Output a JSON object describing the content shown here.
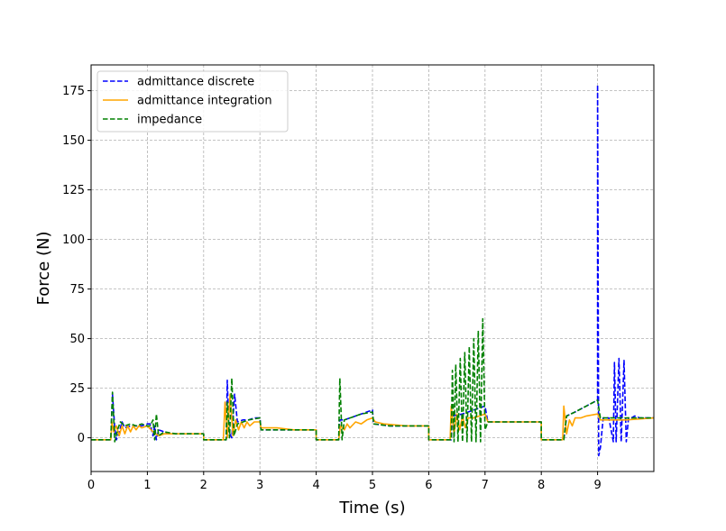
{
  "chart_data": {
    "type": "line",
    "title": "",
    "xlabel": "Time (s)",
    "ylabel": "Force (N)",
    "xlim": [
      0,
      10
    ],
    "ylim": [
      -17,
      188
    ],
    "xticks": [
      0,
      1,
      2,
      3,
      4,
      5,
      6,
      7,
      8,
      9
    ],
    "yticks": [
      0,
      25,
      50,
      75,
      100,
      125,
      150,
      175
    ],
    "grid": true,
    "legend_position": "top-left",
    "series": [
      {
        "name": "admittance discrete",
        "color": "#0000ff",
        "dash": "dashed",
        "points": [
          [
            0,
            -1
          ],
          [
            0.35,
            -1
          ],
          [
            0.38,
            22
          ],
          [
            0.42,
            5
          ],
          [
            0.45,
            -1
          ],
          [
            0.5,
            3
          ],
          [
            0.55,
            8
          ],
          [
            0.6,
            5
          ],
          [
            0.7,
            6
          ],
          [
            0.8,
            6
          ],
          [
            0.9,
            6
          ],
          [
            1.0,
            7
          ],
          [
            1.05,
            7
          ],
          [
            1.1,
            1
          ],
          [
            1.13,
            6
          ],
          [
            1.16,
            -1
          ],
          [
            1.2,
            4
          ],
          [
            1.3,
            3
          ],
          [
            1.4,
            2
          ],
          [
            1.6,
            2
          ],
          [
            2.0,
            2
          ],
          [
            2.0,
            -1
          ],
          [
            2.4,
            -1
          ],
          [
            2.42,
            29
          ],
          [
            2.45,
            3
          ],
          [
            2.5,
            0
          ],
          [
            2.55,
            22
          ],
          [
            2.6,
            8
          ],
          [
            2.7,
            9
          ],
          [
            2.8,
            9
          ],
          [
            2.9,
            10
          ],
          [
            3.0,
            10
          ],
          [
            3.02,
            4
          ],
          [
            3.3,
            4
          ],
          [
            3.6,
            4
          ],
          [
            4.0,
            4
          ],
          [
            4.0,
            -1
          ],
          [
            4.4,
            -1
          ],
          [
            4.42,
            9
          ],
          [
            4.5,
            9
          ],
          [
            4.6,
            10
          ],
          [
            4.8,
            12
          ],
          [
            5.0,
            14
          ],
          [
            5.02,
            7
          ],
          [
            5.3,
            6
          ],
          [
            5.6,
            6
          ],
          [
            6.0,
            6
          ],
          [
            6.0,
            -1
          ],
          [
            6.4,
            -1
          ],
          [
            6.42,
            11
          ],
          [
            6.6,
            12
          ],
          [
            6.8,
            14
          ],
          [
            7.0,
            16
          ],
          [
            7.05,
            8
          ],
          [
            7.3,
            8
          ],
          [
            7.6,
            8
          ],
          [
            8.0,
            8
          ],
          [
            8.0,
            -1
          ],
          [
            8.4,
            -1
          ],
          [
            8.45,
            11
          ],
          [
            8.6,
            13
          ],
          [
            8.8,
            16
          ],
          [
            9.0,
            19
          ],
          [
            9.0,
            178
          ],
          [
            9.02,
            -9
          ],
          [
            9.05,
            -5
          ],
          [
            9.1,
            10
          ],
          [
            9.2,
            10
          ],
          [
            9.28,
            -2
          ],
          [
            9.3,
            38
          ],
          [
            9.33,
            -2
          ],
          [
            9.38,
            40
          ],
          [
            9.42,
            -2
          ],
          [
            9.47,
            39
          ],
          [
            9.51,
            -2
          ],
          [
            9.55,
            10
          ],
          [
            9.6,
            10
          ],
          [
            9.66,
            11
          ],
          [
            9.75,
            10
          ],
          [
            10.0,
            10
          ]
        ]
      },
      {
        "name": "admittance integration",
        "color": "#ffa500",
        "dash": "solid",
        "points": [
          [
            0,
            -1
          ],
          [
            0.35,
            -1
          ],
          [
            0.37,
            8
          ],
          [
            0.4,
            3
          ],
          [
            0.45,
            6
          ],
          [
            0.5,
            1
          ],
          [
            0.55,
            6
          ],
          [
            0.6,
            2
          ],
          [
            0.65,
            6
          ],
          [
            0.7,
            3
          ],
          [
            0.75,
            6
          ],
          [
            0.8,
            4
          ],
          [
            0.85,
            6
          ],
          [
            0.9,
            5
          ],
          [
            1.0,
            6
          ],
          [
            1.1,
            3
          ],
          [
            1.2,
            1
          ],
          [
            1.3,
            2
          ],
          [
            1.5,
            2
          ],
          [
            2.0,
            2
          ],
          [
            2.0,
            -1
          ],
          [
            2.35,
            -1
          ],
          [
            2.38,
            18
          ],
          [
            2.42,
            0
          ],
          [
            2.47,
            22
          ],
          [
            2.52,
            1
          ],
          [
            2.57,
            9
          ],
          [
            2.62,
            4
          ],
          [
            2.67,
            8
          ],
          [
            2.72,
            5
          ],
          [
            2.77,
            8
          ],
          [
            2.82,
            6
          ],
          [
            2.9,
            8
          ],
          [
            3.0,
            8
          ],
          [
            3.02,
            5
          ],
          [
            3.3,
            5
          ],
          [
            3.6,
            4
          ],
          [
            4.0,
            4
          ],
          [
            4.0,
            -1
          ],
          [
            4.4,
            -1
          ],
          [
            4.43,
            6
          ],
          [
            4.5,
            4
          ],
          [
            4.55,
            7
          ],
          [
            4.6,
            5
          ],
          [
            4.7,
            8
          ],
          [
            4.8,
            7
          ],
          [
            4.9,
            9
          ],
          [
            5.0,
            10
          ],
          [
            5.05,
            8
          ],
          [
            5.2,
            7
          ],
          [
            5.6,
            6
          ],
          [
            6.0,
            6
          ],
          [
            6.0,
            -1
          ],
          [
            6.38,
            -1
          ],
          [
            6.4,
            16
          ],
          [
            6.45,
            2
          ],
          [
            6.5,
            12
          ],
          [
            6.55,
            4
          ],
          [
            6.6,
            11
          ],
          [
            6.65,
            5
          ],
          [
            6.7,
            10
          ],
          [
            6.8,
            10
          ],
          [
            6.9,
            11
          ],
          [
            7.0,
            12
          ],
          [
            7.05,
            8
          ],
          [
            7.5,
            8
          ],
          [
            8.0,
            8
          ],
          [
            8.0,
            -1
          ],
          [
            8.38,
            -1
          ],
          [
            8.4,
            16
          ],
          [
            8.45,
            2
          ],
          [
            8.5,
            9
          ],
          [
            8.55,
            6
          ],
          [
            8.6,
            10
          ],
          [
            8.7,
            10
          ],
          [
            8.8,
            11
          ],
          [
            9.0,
            12
          ],
          [
            9.05,
            9
          ],
          [
            9.5,
            9
          ],
          [
            10.0,
            10
          ]
        ]
      },
      {
        "name": "impedance",
        "color": "#008000",
        "dash": "dashed",
        "points": [
          [
            0,
            -1
          ],
          [
            0.35,
            -1
          ],
          [
            0.38,
            23
          ],
          [
            0.42,
            -2
          ],
          [
            0.47,
            4
          ],
          [
            0.52,
            8
          ],
          [
            0.6,
            6
          ],
          [
            0.7,
            7
          ],
          [
            0.8,
            6
          ],
          [
            0.9,
            7
          ],
          [
            1.0,
            6
          ],
          [
            1.05,
            6
          ],
          [
            1.1,
            9
          ],
          [
            1.13,
            -1
          ],
          [
            1.16,
            12
          ],
          [
            1.2,
            1
          ],
          [
            1.3,
            3
          ],
          [
            1.5,
            2
          ],
          [
            2.0,
            2
          ],
          [
            2.0,
            -1
          ],
          [
            2.4,
            -1
          ],
          [
            2.42,
            18
          ],
          [
            2.46,
            0
          ],
          [
            2.5,
            30
          ],
          [
            2.54,
            1
          ],
          [
            2.6,
            7
          ],
          [
            2.7,
            8
          ],
          [
            2.8,
            9
          ],
          [
            3.0,
            10
          ],
          [
            3.02,
            4
          ],
          [
            3.3,
            4
          ],
          [
            3.6,
            4
          ],
          [
            4.0,
            4
          ],
          [
            4.0,
            -1
          ],
          [
            4.4,
            -1
          ],
          [
            4.42,
            30
          ],
          [
            4.46,
            -1
          ],
          [
            4.5,
            9
          ],
          [
            4.6,
            10
          ],
          [
            4.8,
            12
          ],
          [
            5.0,
            13
          ],
          [
            5.02,
            7
          ],
          [
            5.3,
            6
          ],
          [
            5.6,
            6
          ],
          [
            6.0,
            6
          ],
          [
            6.0,
            -1
          ],
          [
            6.4,
            -1
          ],
          [
            6.42,
            34
          ],
          [
            6.45,
            -2
          ],
          [
            6.48,
            37
          ],
          [
            6.52,
            -2
          ],
          [
            6.56,
            40
          ],
          [
            6.6,
            -2
          ],
          [
            6.64,
            43
          ],
          [
            6.68,
            -2
          ],
          [
            6.72,
            46
          ],
          [
            6.76,
            -2
          ],
          [
            6.8,
            50
          ],
          [
            6.84,
            -2
          ],
          [
            6.88,
            54
          ],
          [
            6.92,
            -2
          ],
          [
            6.96,
            60
          ],
          [
            7.0,
            4
          ],
          [
            7.05,
            8
          ],
          [
            7.5,
            8
          ],
          [
            8.0,
            8
          ],
          [
            8.0,
            -1
          ],
          [
            8.4,
            -1
          ],
          [
            8.45,
            11
          ],
          [
            8.6,
            13
          ],
          [
            8.8,
            16
          ],
          [
            9.0,
            19
          ],
          [
            9.05,
            10
          ],
          [
            9.5,
            10
          ],
          [
            10.0,
            10
          ]
        ]
      }
    ]
  }
}
